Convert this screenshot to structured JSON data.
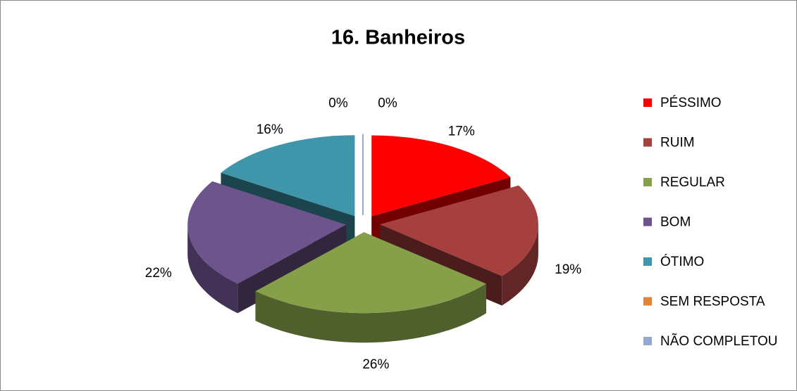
{
  "chart_data": {
    "type": "pie",
    "title": "16. Banheiros",
    "categories": [
      "PÉSSIMO",
      "RUIM",
      "REGULAR",
      "BOM",
      "ÓTIMO",
      "SEM RESPOSTA",
      "NÃO COMPLETOU"
    ],
    "values": [
      17,
      19,
      26,
      22,
      16,
      0,
      0
    ],
    "value_labels": [
      "17%",
      "19%",
      "26%",
      "22%",
      "16%",
      "0%",
      "0%"
    ],
    "colors": [
      "#ff0000",
      "#a5403f",
      "#86a04a",
      "#6e548d",
      "#3f96ab",
      "#e0843a",
      "#93a9cf"
    ],
    "legend": "right"
  }
}
